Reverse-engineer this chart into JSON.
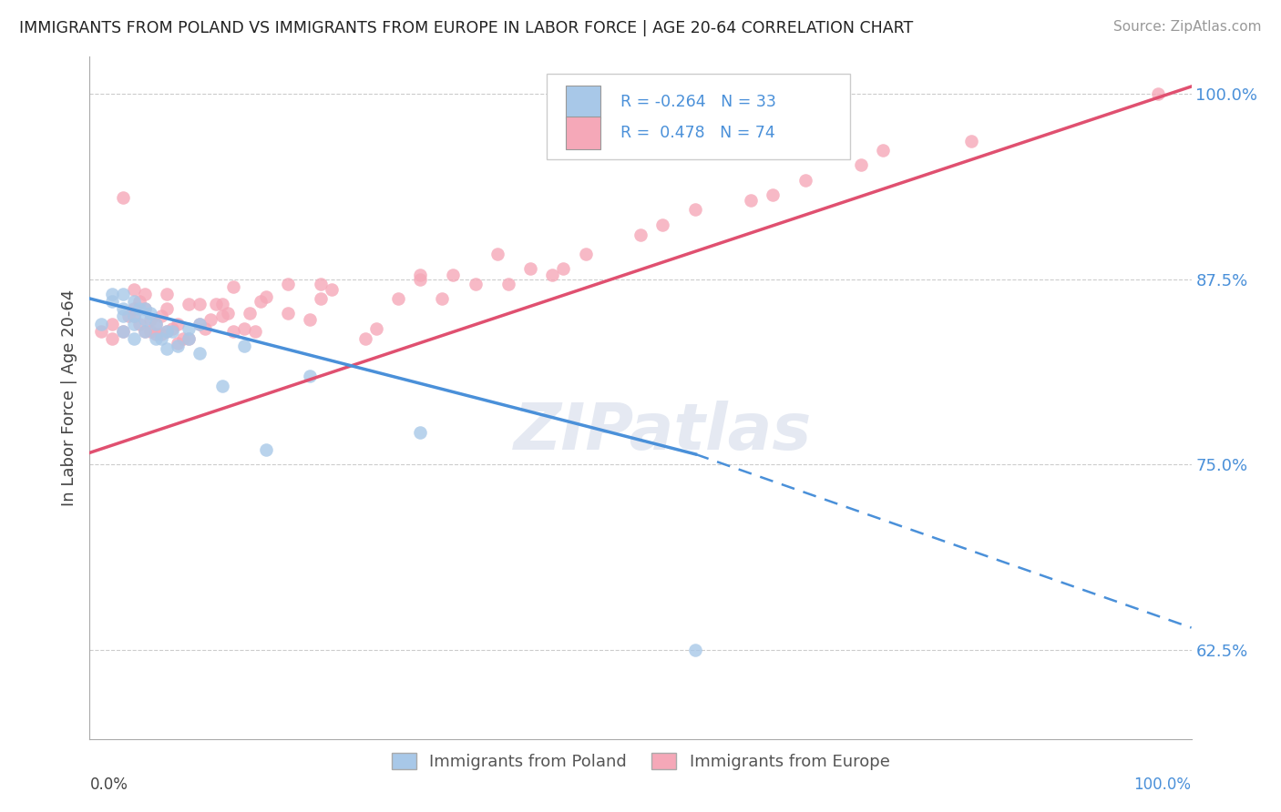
{
  "title": "IMMIGRANTS FROM POLAND VS IMMIGRANTS FROM EUROPE IN LABOR FORCE | AGE 20-64 CORRELATION CHART",
  "source": "Source: ZipAtlas.com",
  "ylabel": "In Labor Force | Age 20-64",
  "y_ticks_pct": [
    62.5,
    75.0,
    87.5,
    100.0
  ],
  "y_tick_labels": [
    "62.5%",
    "75.0%",
    "87.5%",
    "100.0%"
  ],
  "x_range": [
    0.0,
    1.0
  ],
  "y_range": [
    0.565,
    1.025
  ],
  "legend_R1": "-0.264",
  "legend_N1": "33",
  "legend_R2": "0.478",
  "legend_N2": "74",
  "color_poland": "#a8c8e8",
  "color_europe": "#f5a8b8",
  "trendline_poland_color": "#4a90d9",
  "trendline_europe_color": "#e05070",
  "background_color": "#ffffff",
  "watermark_text": "ZIPatlas",
  "poland_x": [
    0.01,
    0.02,
    0.02,
    0.03,
    0.03,
    0.03,
    0.03,
    0.04,
    0.04,
    0.04,
    0.04,
    0.045,
    0.05,
    0.05,
    0.05,
    0.055,
    0.06,
    0.06,
    0.065,
    0.07,
    0.07,
    0.075,
    0.08,
    0.09,
    0.09,
    0.1,
    0.1,
    0.12,
    0.14,
    0.16,
    0.2,
    0.3,
    0.55
  ],
  "poland_y": [
    0.845,
    0.86,
    0.865,
    0.84,
    0.85,
    0.855,
    0.865,
    0.835,
    0.845,
    0.85,
    0.86,
    0.855,
    0.84,
    0.848,
    0.855,
    0.852,
    0.835,
    0.845,
    0.835,
    0.828,
    0.84,
    0.84,
    0.83,
    0.835,
    0.842,
    0.825,
    0.845,
    0.803,
    0.83,
    0.76,
    0.81,
    0.772,
    0.625
  ],
  "europe_x": [
    0.01,
    0.02,
    0.02,
    0.03,
    0.03,
    0.035,
    0.04,
    0.04,
    0.04,
    0.045,
    0.045,
    0.05,
    0.05,
    0.05,
    0.055,
    0.055,
    0.06,
    0.06,
    0.065,
    0.065,
    0.07,
    0.07,
    0.07,
    0.075,
    0.08,
    0.08,
    0.085,
    0.09,
    0.09,
    0.1,
    0.1,
    0.105,
    0.11,
    0.115,
    0.12,
    0.12,
    0.125,
    0.13,
    0.13,
    0.14,
    0.145,
    0.15,
    0.155,
    0.16,
    0.18,
    0.18,
    0.2,
    0.21,
    0.21,
    0.22,
    0.25,
    0.26,
    0.28,
    0.3,
    0.3,
    0.32,
    0.33,
    0.35,
    0.37,
    0.38,
    0.4,
    0.42,
    0.43,
    0.45,
    0.5,
    0.52,
    0.55,
    0.6,
    0.62,
    0.65,
    0.7,
    0.72,
    0.8,
    0.97
  ],
  "europe_y": [
    0.84,
    0.835,
    0.845,
    0.93,
    0.84,
    0.85,
    0.855,
    0.868,
    0.85,
    0.845,
    0.86,
    0.84,
    0.855,
    0.865,
    0.84,
    0.848,
    0.838,
    0.845,
    0.838,
    0.85,
    0.84,
    0.855,
    0.865,
    0.842,
    0.832,
    0.845,
    0.835,
    0.835,
    0.858,
    0.845,
    0.858,
    0.842,
    0.848,
    0.858,
    0.858,
    0.85,
    0.852,
    0.84,
    0.87,
    0.842,
    0.852,
    0.84,
    0.86,
    0.863,
    0.852,
    0.872,
    0.848,
    0.862,
    0.872,
    0.868,
    0.835,
    0.842,
    0.862,
    0.875,
    0.878,
    0.862,
    0.878,
    0.872,
    0.892,
    0.872,
    0.882,
    0.878,
    0.882,
    0.892,
    0.905,
    0.912,
    0.922,
    0.928,
    0.932,
    0.942,
    0.952,
    0.962,
    0.968,
    1.0
  ],
  "trendline_poland_x0": 0.0,
  "trendline_poland_y0": 0.862,
  "trendline_poland_x1": 0.55,
  "trendline_poland_y1": 0.757,
  "trendline_poland_xdash_end": 1.0,
  "trendline_poland_ydash_end": 0.64,
  "trendline_europe_x0": 0.0,
  "trendline_europe_y0": 0.758,
  "trendline_europe_x1": 1.0,
  "trendline_europe_y1": 1.005
}
